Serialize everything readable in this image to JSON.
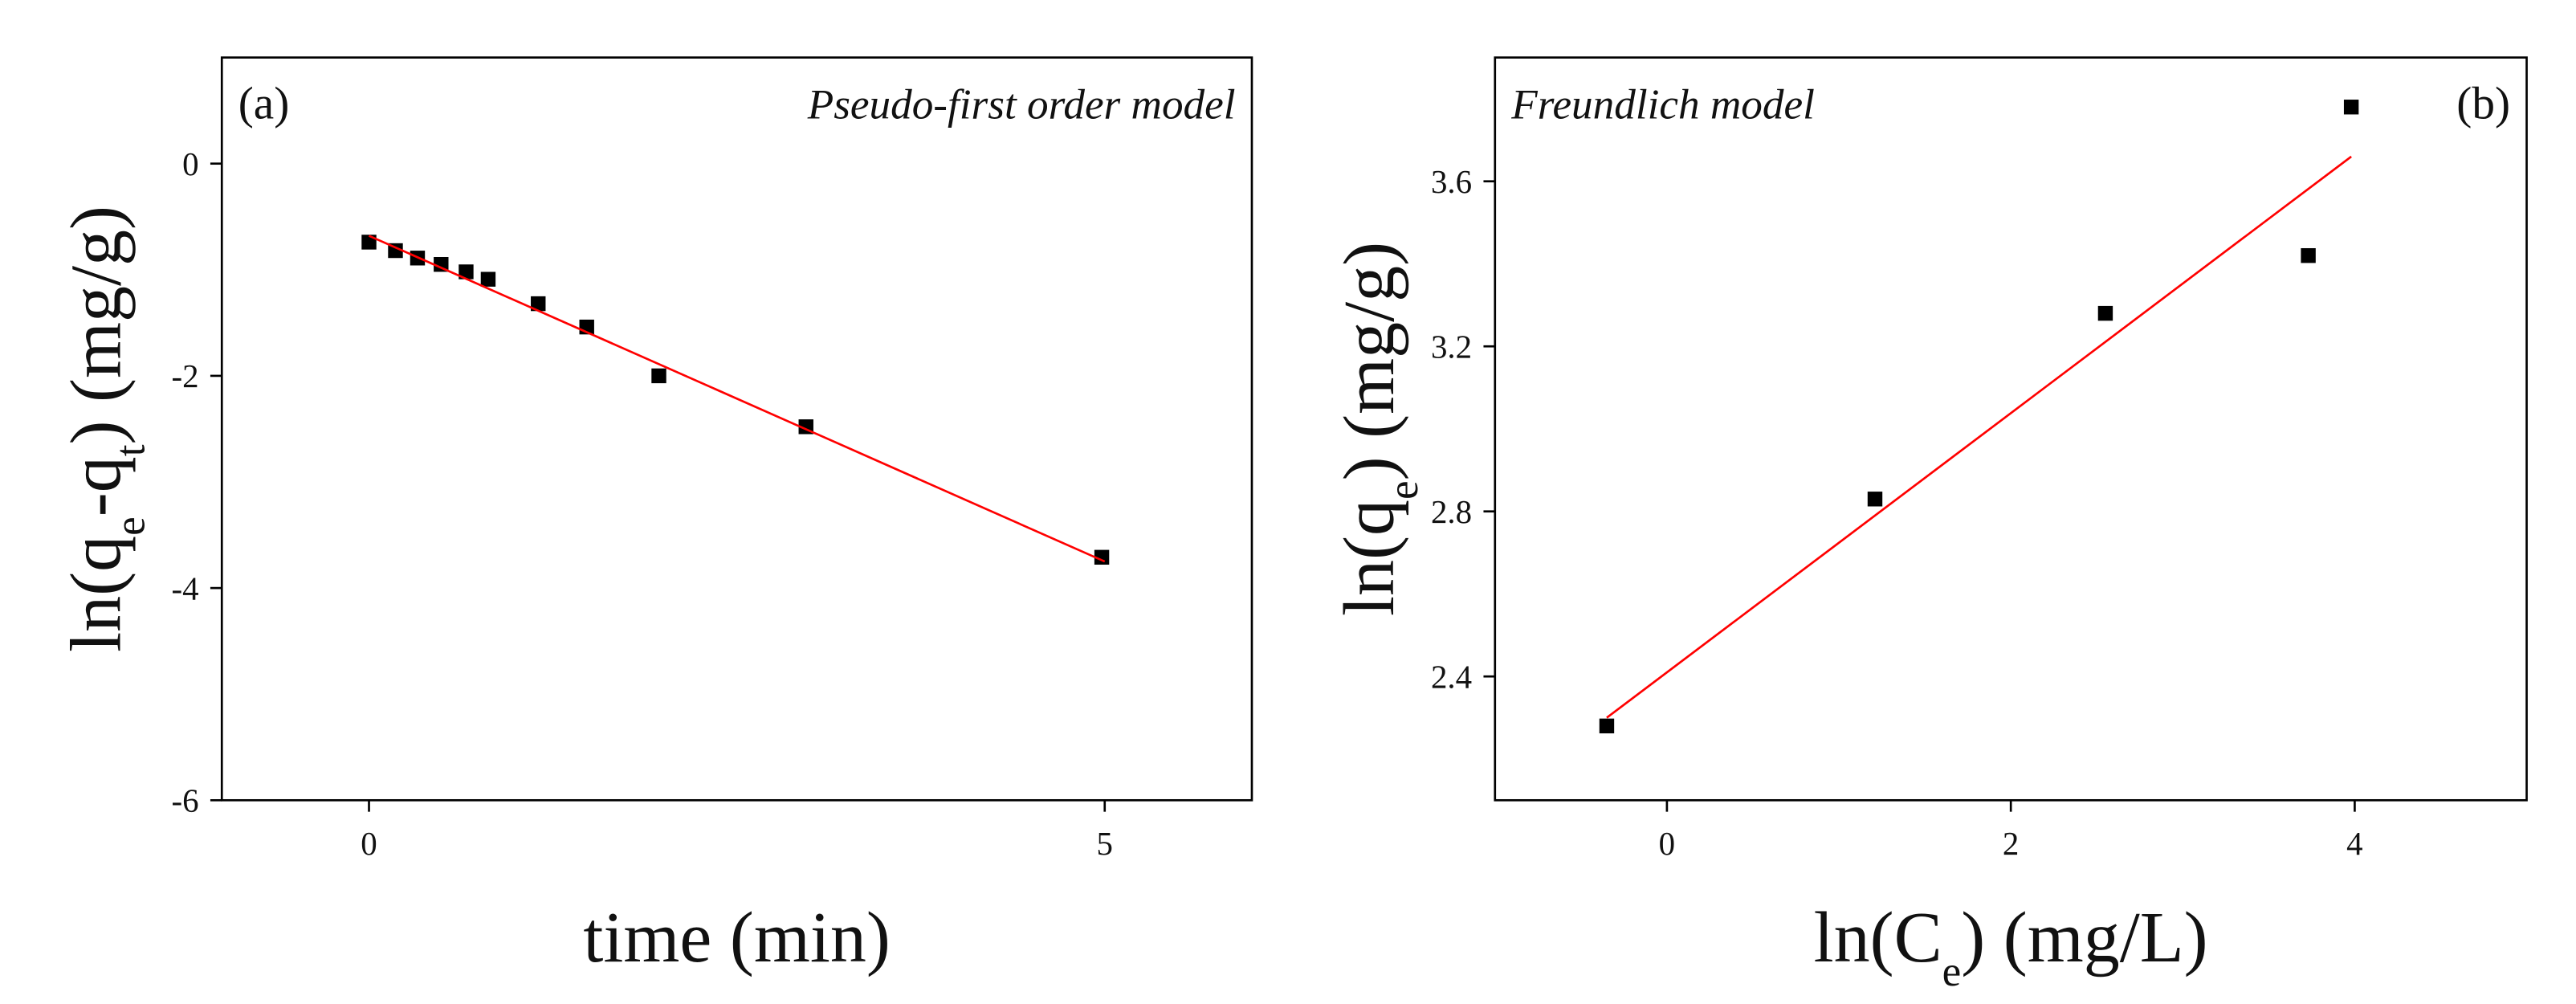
{
  "chart_data": [
    {
      "type": "scatter",
      "xlabel": [
        "time (min)"
      ],
      "ylabel": [
        "ln(q",
        "e",
        "-q",
        "t",
        ") (mg/g)"
      ],
      "annotations": [
        {
          "text": "(a)",
          "corner": "top-left",
          "style": "normal"
        },
        {
          "text": "Pseudo-first order model",
          "corner": "top-right",
          "style": "italic"
        }
      ],
      "xlim": [
        -1,
        6
      ],
      "xticks": [
        0,
        5
      ],
      "ylim": [
        -6,
        1
      ],
      "yticks": [
        -6,
        -4,
        -2,
        0
      ],
      "series": [
        {
          "color": "#000000",
          "style": "marker",
          "x": [
            0,
            0.18,
            0.33,
            0.49,
            0.66,
            0.81,
            1.15,
            1.48,
            1.97,
            2.97,
            4.98
          ],
          "values": [
            -0.74,
            -0.82,
            -0.89,
            -0.95,
            -1.02,
            -1.09,
            -1.32,
            -1.54,
            -2.0,
            -2.48,
            -3.71
          ]
        },
        {
          "color": "#ff0000",
          "style": "line",
          "x": [
            0,
            5
          ],
          "values": [
            -0.68,
            -3.75
          ]
        }
      ]
    },
    {
      "type": "scatter",
      "xlabel": [
        "ln(C",
        "e",
        ") (mg/L)"
      ],
      "ylabel": [
        "ln(q",
        "e",
        ") (mg/g)"
      ],
      "annotations": [
        {
          "text": "Freundlich model",
          "corner": "top-left",
          "style": "italic"
        },
        {
          "text": "(b)",
          "corner": "top-right",
          "style": "normal"
        }
      ],
      "xlim": [
        -1,
        5
      ],
      "xticks": [
        0,
        2,
        4
      ],
      "ylim": [
        2.1,
        3.9
      ],
      "yticks": [
        2.4,
        2.8,
        3.2,
        3.6
      ],
      "series": [
        {
          "color": "#000000",
          "style": "marker",
          "x": [
            -0.35,
            1.21,
            2.55,
            3.73,
            3.98
          ],
          "values": [
            2.28,
            2.83,
            3.28,
            3.42,
            3.78
          ]
        },
        {
          "color": "#ff0000",
          "style": "line",
          "x": [
            -0.35,
            3.98
          ],
          "values": [
            2.3,
            3.66
          ]
        }
      ]
    }
  ]
}
